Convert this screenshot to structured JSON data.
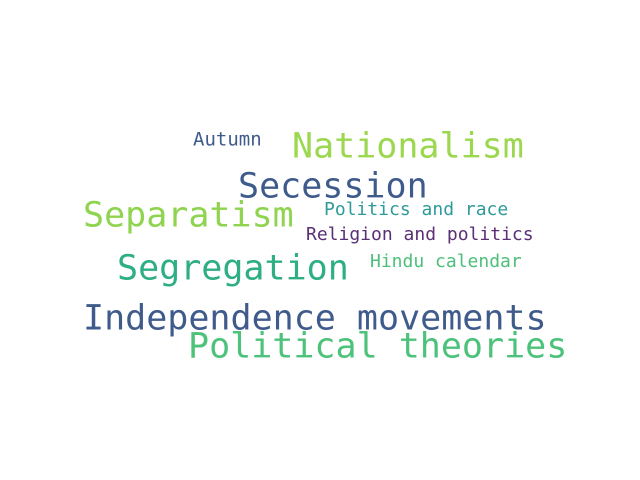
{
  "words": [
    {
      "text": "Autumn",
      "color": "#3f5b8c"
    },
    {
      "text": "Nationalism",
      "color": "#9bd84f"
    },
    {
      "text": "Secession",
      "color": "#3f5b8c"
    },
    {
      "text": "Separatism",
      "color": "#8fd44f"
    },
    {
      "text": "Politics and race",
      "color": "#2e9a9a"
    },
    {
      "text": "Religion and politics",
      "color": "#5a2f73"
    },
    {
      "text": "Segregation",
      "color": "#2eae85"
    },
    {
      "text": "Hindu calendar",
      "color": "#4cc07a"
    },
    {
      "text": "Independence movements",
      "color": "#3f5b8c"
    },
    {
      "text": "Political theories",
      "color": "#4cc27a"
    }
  ]
}
